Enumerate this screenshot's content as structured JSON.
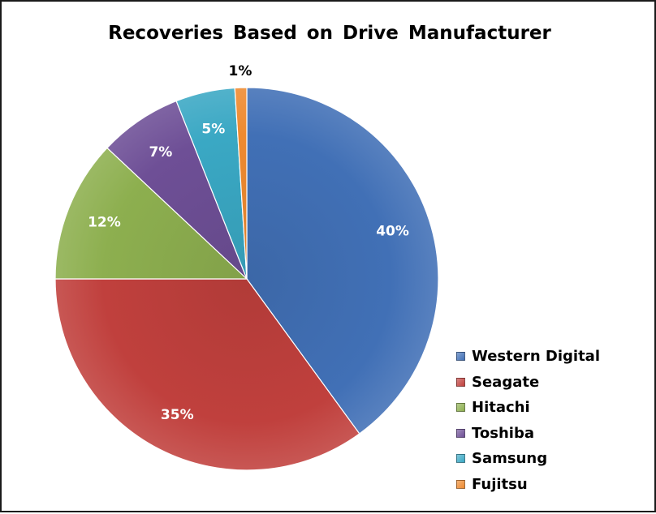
{
  "chart_data": {
    "type": "pie",
    "title": "Recoveries Based on Drive Manufacturer",
    "categories": [
      "Western Digital",
      "Seagate",
      "Hitachi",
      "Toshiba",
      "Samsung",
      "Fujitsu"
    ],
    "values": [
      40,
      35,
      12,
      7,
      5,
      1
    ],
    "labels": [
      "40%",
      "35%",
      "12%",
      "7%",
      "5%",
      "1%"
    ],
    "colors": [
      "#4170b6",
      "#c0403d",
      "#8daf4f",
      "#6e4f96",
      "#3aa8c4",
      "#ee8a30"
    ],
    "label_colors": [
      "#ffffff",
      "#ffffff",
      "#ffffff",
      "#ffffff",
      "#ffffff",
      "#000000"
    ],
    "legend": {
      "position": "bottom-right",
      "entries": [
        "Western Digital",
        "Seagate",
        "Hitachi",
        "Toshiba",
        "Samsung",
        "Fujitsu"
      ]
    }
  }
}
